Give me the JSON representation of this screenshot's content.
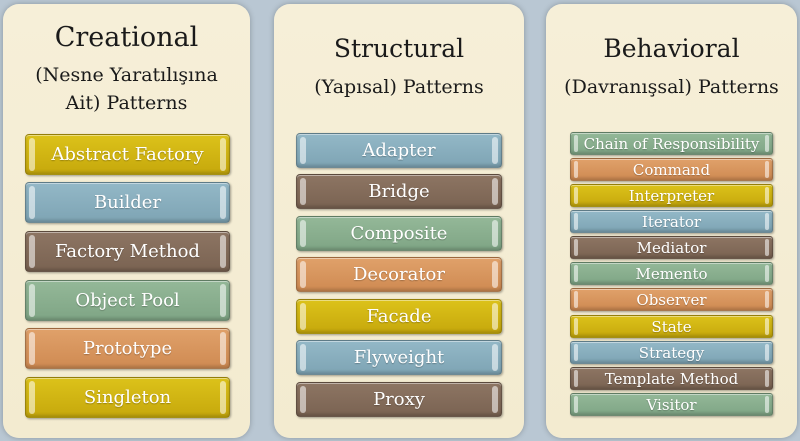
{
  "columns": [
    {
      "title": "Creational",
      "subtitle_line1": "(Nesne Yaratılışına",
      "subtitle_line2": "Ait) Patterns",
      "patterns": [
        {
          "label": "Abstract Factory",
          "color": "#d4b713"
        },
        {
          "label": "Builder",
          "color": "#88aebd"
        },
        {
          "label": "Factory Method",
          "color": "#846c5a"
        },
        {
          "label": "Object Pool",
          "color": "#8aae8e"
        },
        {
          "label": "Prototype",
          "color": "#d8955e"
        },
        {
          "label": "Singleton",
          "color": "#d4b713"
        }
      ]
    },
    {
      "title": "Structural",
      "subtitle_line1": "(Yapısal) Patterns",
      "patterns": [
        {
          "label": "Adapter",
          "color": "#88aebd"
        },
        {
          "label": "Bridge",
          "color": "#846c5a"
        },
        {
          "label": "Composite",
          "color": "#8aae8e"
        },
        {
          "label": "Decorator",
          "color": "#d8955e"
        },
        {
          "label": "Facade",
          "color": "#d4b713"
        },
        {
          "label": "Flyweight",
          "color": "#88aebd"
        },
        {
          "label": "Proxy",
          "color": "#846c5a"
        }
      ]
    },
    {
      "title": "Behavioral",
      "subtitle_line1": "(Davranışsal) Patterns",
      "patterns": [
        {
          "label": "Chain of Responsibility",
          "color": "#8aae8e"
        },
        {
          "label": "Command",
          "color": "#d8955e"
        },
        {
          "label": "Interpreter",
          "color": "#d4b713"
        },
        {
          "label": "Iterator",
          "color": "#88aebd"
        },
        {
          "label": "Mediator",
          "color": "#846c5a"
        },
        {
          "label": "Memento",
          "color": "#8aae8e"
        },
        {
          "label": "Observer",
          "color": "#d8955e"
        },
        {
          "label": "State",
          "color": "#d4b713"
        },
        {
          "label": "Strategy",
          "color": "#88aebd"
        },
        {
          "label": "Template Method",
          "color": "#846c5a"
        },
        {
          "label": "Visitor",
          "color": "#8aae8e"
        }
      ]
    }
  ]
}
